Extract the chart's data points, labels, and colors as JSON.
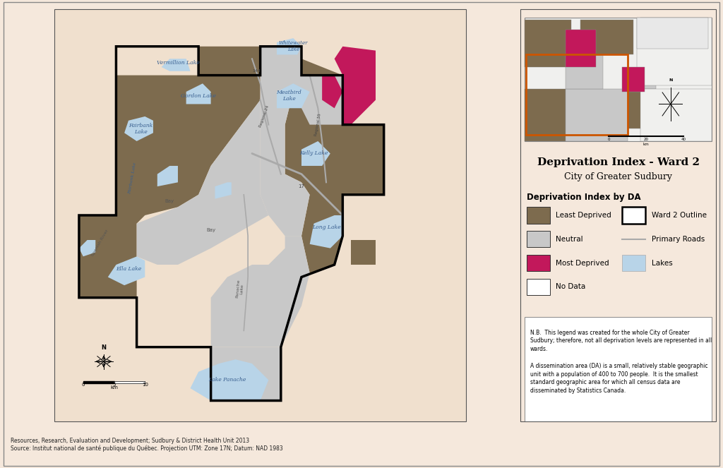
{
  "title": "Deprivation Index - Ward 2",
  "subtitle": "City of Greater Sudbury",
  "legend_title": "Deprivation Index by DA",
  "legend_items": [
    {
      "label": "Least Deprived",
      "color": "#7d6b4e"
    },
    {
      "label": "Neutral",
      "color": "#c8c8c8"
    },
    {
      "label": "Most Deprived",
      "color": "#c2185b"
    },
    {
      "label": "No Data",
      "color": "#ffffff"
    }
  ],
  "legend_items2": [
    {
      "label": "Ward 2 Outline",
      "color": "#000000",
      "type": "outline"
    },
    {
      "label": "Primary Roads",
      "color": "#aaaaaa",
      "type": "line"
    },
    {
      "label": "Lakes",
      "color": "#b8d4e8",
      "type": "fill"
    }
  ],
  "note_text": "N.B.  This legend was created for the whole City of Greater\nSudbury; therefore, not all deprivation levels are represented in all\nwards.\n\nA dissemination area (DA) is a small, relatively stable geographic\nunit with a population of 400 to 700 people.  It is the smallest\nstandard geographic area for which all census data are\ndisseminated by Statistics Canada.",
  "source_text": "Resources, Research, Evaluation and Development; Sudbury & District Health Unit 2013\nSource: Institut national de santé publique du Québec. Projection UTM: Zone 17N; Datum: NAD 1983",
  "bg_color": "#f5e8dc",
  "map_bg": "#f5e8dc",
  "ward_fill_dark": "#7d6b4e",
  "ward_fill_light": "#c8c8c8",
  "ward_fill_deprived": "#c2185b",
  "lake_color": "#b8d4e8",
  "road_color": "#aaaaaa",
  "inset_border_color": "#cc5500"
}
